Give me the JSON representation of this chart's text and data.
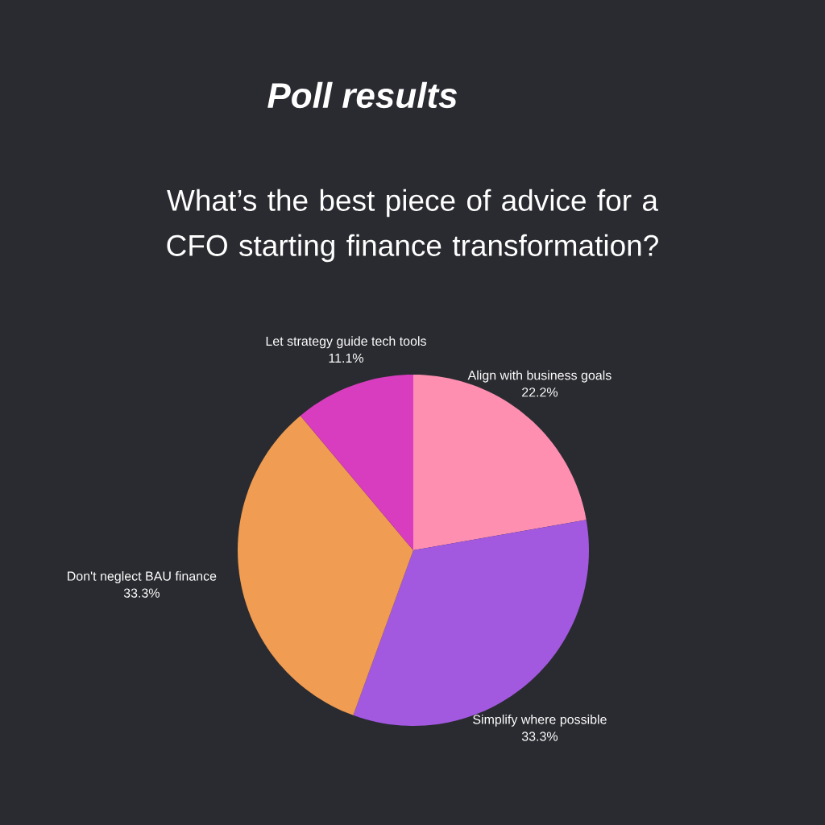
{
  "chart_data": {
    "type": "pie",
    "title": "Poll results",
    "subtitle": "What’s the best piece of advice for a CFO starting finance transformation?",
    "categories": [
      "Align with business goals",
      "Simplify where possible",
      "Don't neglect BAU finance",
      "Let strategy guide tech tools"
    ],
    "values": [
      22.2,
      33.3,
      33.3,
      11.1
    ],
    "colors": [
      "#ff8fb1",
      "#a259e0",
      "#f09c52",
      "#d93dbf"
    ],
    "value_labels": [
      "22.2%",
      "33.3%",
      "33.3%",
      "11.1%"
    ]
  }
}
